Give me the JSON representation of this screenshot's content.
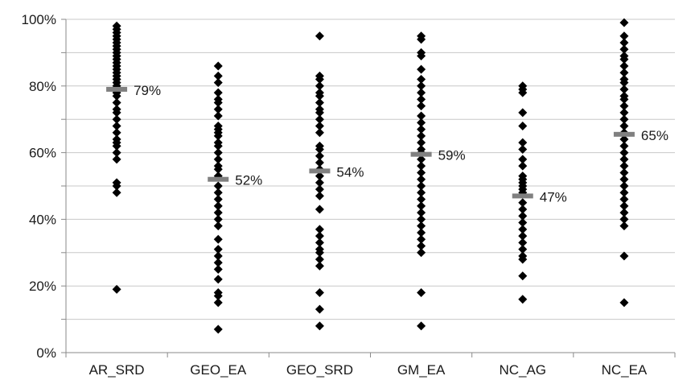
{
  "chart_data": {
    "type": "scatter",
    "title": "",
    "xlabel": "",
    "ylabel": "",
    "ylim": [
      0,
      1
    ],
    "yticks": [
      0,
      0.2,
      0.4,
      0.6,
      0.8,
      1.0
    ],
    "ytick_labels": [
      "0%",
      "20%",
      "40%",
      "60%",
      "80%",
      "100%"
    ],
    "grid": true,
    "legend": "none",
    "point_color": "#000000",
    "mean_color": "#808080",
    "categories": [
      {
        "name": "AR_SRD",
        "mean": 0.79,
        "mean_label": "79%",
        "points": [
          0.98,
          0.97,
          0.96,
          0.95,
          0.94,
          0.93,
          0.92,
          0.91,
          0.9,
          0.89,
          0.88,
          0.87,
          0.86,
          0.85,
          0.84,
          0.83,
          0.82,
          0.81,
          0.8,
          0.78,
          0.77,
          0.75,
          0.73,
          0.72,
          0.7,
          0.68,
          0.66,
          0.64,
          0.63,
          0.62,
          0.6,
          0.58,
          0.51,
          0.5,
          0.48,
          0.19
        ]
      },
      {
        "name": "GEO_EA",
        "mean": 0.52,
        "mean_label": "52%",
        "points": [
          0.86,
          0.83,
          0.81,
          0.78,
          0.76,
          0.75,
          0.73,
          0.71,
          0.68,
          0.67,
          0.66,
          0.65,
          0.63,
          0.62,
          0.6,
          0.58,
          0.56,
          0.55,
          0.53,
          0.5,
          0.48,
          0.46,
          0.44,
          0.42,
          0.4,
          0.38,
          0.34,
          0.31,
          0.29,
          0.27,
          0.25,
          0.22,
          0.18,
          0.17,
          0.15,
          0.07
        ]
      },
      {
        "name": "GEO_SRD",
        "mean": 0.545,
        "mean_label": "54%",
        "points": [
          0.95,
          0.83,
          0.82,
          0.8,
          0.78,
          0.77,
          0.75,
          0.73,
          0.72,
          0.7,
          0.68,
          0.66,
          0.62,
          0.61,
          0.59,
          0.57,
          0.55,
          0.53,
          0.51,
          0.49,
          0.47,
          0.43,
          0.37,
          0.35,
          0.33,
          0.31,
          0.3,
          0.28,
          0.26,
          0.18,
          0.13,
          0.08
        ]
      },
      {
        "name": "GM_EA",
        "mean": 0.595,
        "mean_label": "59%",
        "points": [
          0.95,
          0.94,
          0.9,
          0.89,
          0.85,
          0.82,
          0.8,
          0.78,
          0.76,
          0.74,
          0.71,
          0.69,
          0.67,
          0.65,
          0.63,
          0.61,
          0.6,
          0.58,
          0.56,
          0.54,
          0.52,
          0.5,
          0.48,
          0.46,
          0.44,
          0.42,
          0.4,
          0.38,
          0.36,
          0.34,
          0.32,
          0.3,
          0.18,
          0.08
        ]
      },
      {
        "name": "NC_AG",
        "mean": 0.47,
        "mean_label": "47%",
        "points": [
          0.8,
          0.79,
          0.78,
          0.72,
          0.68,
          0.63,
          0.61,
          0.58,
          0.56,
          0.53,
          0.52,
          0.51,
          0.5,
          0.49,
          0.48,
          0.45,
          0.43,
          0.41,
          0.39,
          0.37,
          0.35,
          0.33,
          0.31,
          0.29,
          0.28,
          0.23,
          0.16
        ]
      },
      {
        "name": "NC_EA",
        "mean": 0.655,
        "mean_label": "65%",
        "points": [
          0.99,
          0.95,
          0.93,
          0.91,
          0.89,
          0.88,
          0.86,
          0.84,
          0.82,
          0.81,
          0.79,
          0.77,
          0.76,
          0.74,
          0.72,
          0.7,
          0.68,
          0.66,
          0.64,
          0.62,
          0.6,
          0.58,
          0.56,
          0.54,
          0.52,
          0.5,
          0.48,
          0.46,
          0.44,
          0.42,
          0.4,
          0.38,
          0.29,
          0.15
        ]
      }
    ]
  }
}
